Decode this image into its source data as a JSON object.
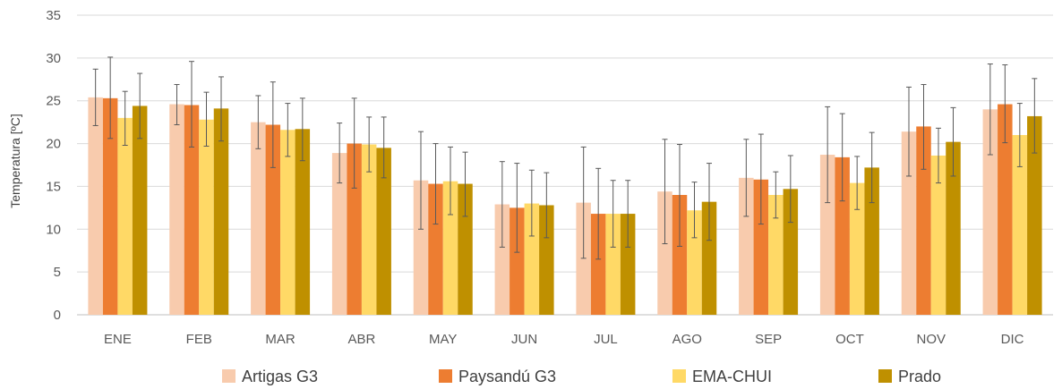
{
  "chart_data": {
    "type": "bar",
    "title": "",
    "xlabel": "",
    "ylabel": "Temperatura [ºC]",
    "ylim": [
      0,
      35
    ],
    "yticks": [
      0,
      5,
      10,
      15,
      20,
      25,
      30,
      35
    ],
    "grid": true,
    "legend_position": "bottom",
    "error_bars": true,
    "categories": [
      "ENE",
      "FEB",
      "MAR",
      "ABR",
      "MAY",
      "JUN",
      "JUL",
      "AGO",
      "SEP",
      "OCT",
      "NOV",
      "DIC"
    ],
    "series": [
      {
        "name": "Artigas G3",
        "color": "#F8CBAD",
        "values": [
          25.4,
          24.6,
          22.5,
          18.9,
          15.7,
          12.9,
          13.1,
          14.4,
          16.0,
          18.7,
          21.4,
          24.0
        ],
        "error_low": [
          22.1,
          22.2,
          19.4,
          15.4,
          10.0,
          7.9,
          6.6,
          8.3,
          11.5,
          13.1,
          16.2,
          18.7
        ],
        "error_high": [
          28.7,
          26.9,
          25.6,
          22.4,
          21.4,
          17.9,
          19.6,
          20.5,
          20.5,
          24.3,
          26.6,
          29.3
        ]
      },
      {
        "name": "Paysandú G3",
        "color": "#ED7D31",
        "values": [
          25.3,
          24.5,
          22.2,
          20.0,
          15.3,
          12.5,
          11.8,
          14.0,
          15.8,
          18.4,
          22.0,
          24.6
        ],
        "error_low": [
          20.6,
          19.6,
          17.2,
          14.8,
          10.6,
          7.3,
          6.5,
          8.0,
          10.6,
          13.3,
          17.0,
          20.1
        ],
        "error_high": [
          30.1,
          29.6,
          27.2,
          25.3,
          20.0,
          17.7,
          17.1,
          19.9,
          21.1,
          23.5,
          26.9,
          29.2
        ]
      },
      {
        "name": "EMA-CHUI",
        "color": "#FFD966",
        "values": [
          23.0,
          22.8,
          21.6,
          19.9,
          15.6,
          13.0,
          11.8,
          12.2,
          14.0,
          15.4,
          18.6,
          21.0
        ],
        "error_low": [
          19.8,
          19.7,
          18.5,
          16.7,
          11.7,
          9.2,
          7.9,
          9.0,
          11.3,
          12.3,
          15.4,
          17.3
        ],
        "error_high": [
          26.1,
          26.0,
          24.7,
          23.1,
          19.6,
          16.9,
          15.7,
          15.5,
          16.7,
          18.5,
          21.8,
          24.7
        ]
      },
      {
        "name": "Prado",
        "color": "#BF9000",
        "values": [
          24.4,
          24.1,
          21.7,
          19.5,
          15.3,
          12.8,
          11.8,
          13.2,
          14.7,
          17.2,
          20.2,
          23.2
        ],
        "error_low": [
          20.6,
          20.3,
          18.0,
          16.0,
          11.5,
          9.0,
          7.9,
          8.7,
          10.8,
          13.1,
          16.2,
          18.9
        ],
        "error_high": [
          28.2,
          27.8,
          25.3,
          23.1,
          19.0,
          16.6,
          15.7,
          17.7,
          18.6,
          21.3,
          24.2,
          27.6
        ]
      }
    ]
  }
}
